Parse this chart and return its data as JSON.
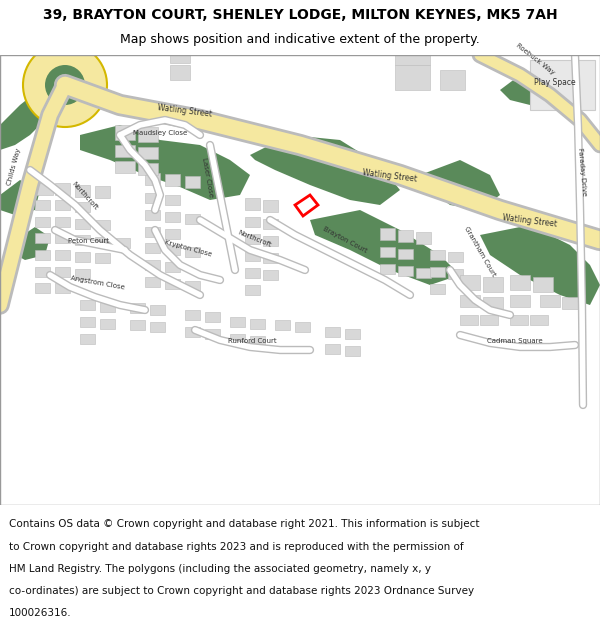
{
  "title_line1": "39, BRAYTON COURT, SHENLEY LODGE, MILTON KEYNES, MK5 7AH",
  "title_line2": "Map shows position and indicative extent of the property.",
  "footer_lines": [
    "Contains OS data © Crown copyright and database right 2021. This information is subject",
    "to Crown copyright and database rights 2023 and is reproduced with the permission of",
    "HM Land Registry. The polygons (including the associated geometry, namely x, y",
    "co-ordinates) are subject to Crown copyright and database rights 2023 Ordnance Survey",
    "100026316."
  ],
  "bg_color": "#ffffff",
  "map_bg": "#f2f2f0",
  "road_major_color": "#f5e8a0",
  "road_minor_color": "#ffffff",
  "road_outline_color": "#bbbbbb",
  "green_color": "#5a8a5a",
  "building_color": "#d8d8d8",
  "building_outline": "#bbbbbb",
  "highlight_color": "#ff0000",
  "title_fontsize": 10,
  "subtitle_fontsize": 9,
  "footer_fontsize": 7.5,
  "label_fontsize": 5.5,
  "label_small_fontsize": 5.0
}
